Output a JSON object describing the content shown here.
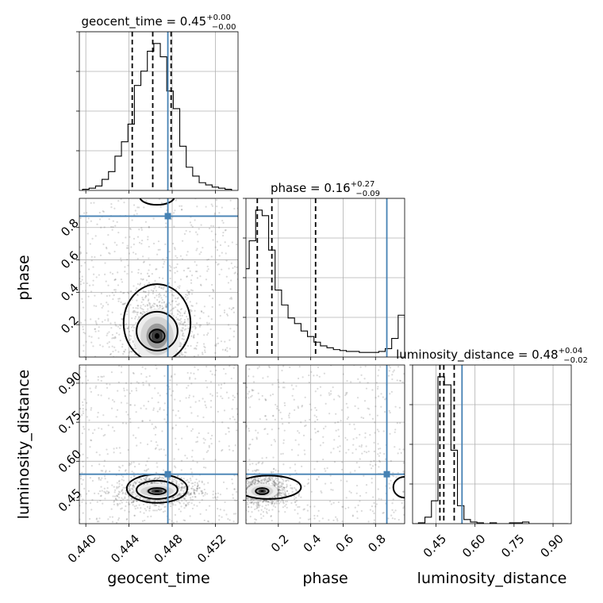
{
  "chart_data": {
    "type": "corner",
    "parameters": [
      "geocent_time",
      "phase",
      "luminosity_distance"
    ],
    "truth_color": "#4682b4",
    "truths": {
      "geocent_time": 0.4476,
      "phase": 0.87,
      "luminosity_distance": 0.55
    },
    "diagonal": [
      {
        "name": "geocent_time",
        "title_label": "geocent_time = 0.45",
        "err_plus": "+0.00",
        "err_minus": "−0.00",
        "range": [
          0.4394,
          0.4541
        ],
        "quantiles": [
          0.4443,
          0.4462,
          0.4479
        ],
        "hist": {
          "x": [
            0.44,
            0.4406,
            0.4412,
            0.4418,
            0.4424,
            0.443,
            0.4436,
            0.4442,
            0.4448,
            0.4454,
            0.446,
            0.4466,
            0.4472,
            0.4478,
            0.4484,
            0.449,
            0.4496,
            0.4502,
            0.4508,
            0.4514,
            0.452,
            0.4526,
            0.4532
          ],
          "values": [
            1,
            2,
            4,
            10,
            17,
            31,
            44,
            60,
            95,
            108,
            126,
            133,
            121,
            90,
            74,
            40,
            21,
            13,
            7,
            5,
            3,
            2,
            1
          ]
        }
      },
      {
        "name": "phase",
        "title_label": "phase = 0.16",
        "err_plus": "+0.27",
        "err_minus": "−0.09",
        "range": [
          0.0,
          0.98
        ],
        "quantiles": [
          0.07,
          0.16,
          0.43
        ],
        "hist": {
          "x": [
            0.0,
            0.04,
            0.08,
            0.12,
            0.16,
            0.2,
            0.24,
            0.28,
            0.32,
            0.36,
            0.4,
            0.44,
            0.48,
            0.52,
            0.56,
            0.6,
            0.64,
            0.68,
            0.72,
            0.76,
            0.8,
            0.84,
            0.88,
            0.92,
            0.96
          ],
          "values": [
            95,
            125,
            158,
            152,
            115,
            72,
            56,
            42,
            36,
            28,
            22,
            16,
            12,
            10,
            8,
            7,
            6,
            6,
            5,
            5,
            5,
            6,
            9,
            20,
            45
          ]
        }
      },
      {
        "name": "luminosity_distance",
        "title_label": "luminosity_distance = 0.48",
        "err_plus": "+0.04",
        "err_minus": "−0.02",
        "range": [
          0.36,
          0.97
        ],
        "quantiles": [
          0.465,
          0.48,
          0.52
        ],
        "hist": {
          "x": [
            0.37,
            0.395,
            0.42,
            0.445,
            0.47,
            0.495,
            0.52,
            0.545,
            0.57,
            0.595,
            0.62,
            0.645,
            0.67,
            0.695,
            0.72,
            0.745,
            0.77,
            0.795,
            0.82,
            0.845,
            0.87,
            0.895,
            0.92,
            0.945
          ],
          "values": [
            0,
            1,
            8,
            28,
            180,
            170,
            90,
            22,
            5,
            2,
            1,
            0,
            1,
            0,
            0,
            1,
            1,
            2,
            0,
            0,
            0,
            0,
            0,
            0
          ]
        }
      }
    ],
    "ticks": {
      "geocent_time": {
        "values": [
          0.44,
          0.444,
          0.448,
          0.452
        ],
        "labels": [
          "0.440",
          "0.444",
          "0.448",
          "0.452"
        ]
      },
      "phase": {
        "values": [
          0.2,
          0.4,
          0.6,
          0.8
        ],
        "labels": [
          "0.2",
          "0.4",
          "0.6",
          "0.8"
        ]
      },
      "luminosity_distance": {
        "values": [
          0.45,
          0.6,
          0.75,
          0.9
        ],
        "labels": [
          "0.45",
          "0.60",
          "0.75",
          "0.90"
        ]
      }
    },
    "pairs": [
      {
        "x": "geocent_time",
        "y": "phase",
        "blobs": [
          {
            "cx": 0.4466,
            "cy": 0.13,
            "sx": 0.0009,
            "sy": 0.07
          }
        ],
        "contours": [
          {
            "cx": 0.4466,
            "cy": 0.13,
            "rx": 0.0007,
            "ry": 0.04
          },
          {
            "cx": 0.4466,
            "cy": 0.16,
            "rx": 0.0019,
            "ry": 0.12
          },
          {
            "cx": 0.4466,
            "cy": 0.21,
            "rx": 0.0031,
            "ry": 0.24
          },
          {
            "cx": 0.4466,
            "cy": 0.99,
            "rx": 0.0016,
            "ry": 0.05
          }
        ]
      },
      {
        "x": "geocent_time",
        "y": "luminosity_distance",
        "blobs": [
          {
            "cx": 0.4466,
            "cy": 0.485,
            "sx": 0.0009,
            "sy": 0.012
          }
        ],
        "contours": [
          {
            "cx": 0.4466,
            "cy": 0.485,
            "rx": 0.0008,
            "ry": 0.012
          },
          {
            "cx": 0.4466,
            "cy": 0.49,
            "rx": 0.0019,
            "ry": 0.035
          },
          {
            "cx": 0.4466,
            "cy": 0.495,
            "rx": 0.0028,
            "ry": 0.055
          }
        ]
      },
      {
        "x": "phase",
        "y": "luminosity_distance",
        "blobs": [
          {
            "cx": 0.1,
            "cy": 0.485,
            "sx": 0.04,
            "sy": 0.012
          }
        ],
        "contours": [
          {
            "cx": 0.1,
            "cy": 0.485,
            "rx": 0.04,
            "ry": 0.012
          },
          {
            "cx": 0.14,
            "cy": 0.5,
            "rx": 0.2,
            "ry": 0.045
          },
          {
            "cx": 0.98,
            "cy": 0.5,
            "rx": 0.07,
            "ry": 0.04
          }
        ]
      }
    ]
  }
}
